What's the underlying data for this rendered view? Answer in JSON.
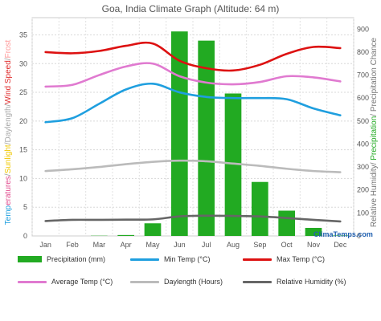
{
  "chart_data": {
    "type": "bar",
    "title": "Goa, India Climate Graph (Altitude: 64 m)",
    "categories": [
      "Jan",
      "Feb",
      "Mar",
      "Apr",
      "May",
      "Jun",
      "Jul",
      "Aug",
      "Sep",
      "Oct",
      "Nov",
      "Dec"
    ],
    "left_axis": {
      "label_segments": [
        {
          "text": "Temp",
          "color": "#1f9fdf"
        },
        {
          "text": "eratures",
          "color": "#e14d8f"
        },
        {
          "text": "/",
          "color": "#999999"
        },
        {
          "text": "Sunlight",
          "color": "#f0c800"
        },
        {
          "text": "/",
          "color": "#999999"
        },
        {
          "text": "Daylength",
          "color": "#aaaaaa"
        },
        {
          "text": "/",
          "color": "#999999"
        },
        {
          "text": "Wind Speed",
          "color": "#e03030"
        },
        {
          "text": "/",
          "color": "#999999"
        },
        {
          "text": "Frost",
          "color": "#ff9999"
        }
      ],
      "ticks": [
        0,
        5,
        10,
        15,
        20,
        25,
        30,
        35
      ],
      "ylim": [
        0,
        38
      ]
    },
    "right_axis": {
      "label_segments": [
        {
          "text": "Relative Humidity/ ",
          "color": "#777777"
        },
        {
          "text": "Precipitation",
          "color": "#22aa22"
        },
        {
          "text": "/ Precipitation Chance",
          "color": "#777777"
        }
      ],
      "ticks": [
        0,
        100,
        200,
        300,
        400,
        500,
        600,
        700,
        800,
        900
      ],
      "ylim": [
        0,
        950
      ]
    },
    "series": [
      {
        "name": "Precipitation (mm)",
        "kind": "bar",
        "axis": "right",
        "color": "#22aa22",
        "values": [
          0,
          0,
          1,
          4,
          55,
          890,
          850,
          620,
          235,
          110,
          35,
          2
        ]
      },
      {
        "name": "Min Temp (°C)",
        "kind": "line",
        "axis": "left",
        "color": "#1f9fdf",
        "values": [
          19.8,
          20.5,
          23.0,
          25.5,
          26.5,
          25.0,
          24.2,
          24.0,
          24.0,
          23.8,
          22.2,
          21.0
        ]
      },
      {
        "name": "Max Temp (°C)",
        "kind": "line",
        "axis": "left",
        "color": "#dd1111",
        "values": [
          32.0,
          31.8,
          32.2,
          33.1,
          33.5,
          30.5,
          29.2,
          28.8,
          29.8,
          31.7,
          32.9,
          32.7
        ]
      },
      {
        "name": "Average Temp (°C)",
        "kind": "line",
        "axis": "left",
        "color": "#e07ad0",
        "values": [
          26.0,
          26.3,
          28.0,
          29.5,
          30.0,
          27.8,
          26.7,
          26.4,
          26.8,
          27.8,
          27.6,
          26.9
        ]
      },
      {
        "name": "Daylength (Hours)",
        "kind": "line",
        "axis": "left",
        "color": "#bbbbbb",
        "values": [
          11.3,
          11.6,
          12.0,
          12.5,
          12.9,
          13.1,
          13.0,
          12.6,
          12.2,
          11.7,
          11.3,
          11.1
        ]
      },
      {
        "name": "Relative Humidity (%)",
        "kind": "line",
        "axis": "right",
        "color": "#666666",
        "values": [
          65,
          70,
          70,
          71,
          72,
          85,
          88,
          87,
          85,
          78,
          70,
          63
        ]
      }
    ],
    "grid": true,
    "legend_position": "bottom"
  },
  "brand": "ClimaTemps.com"
}
